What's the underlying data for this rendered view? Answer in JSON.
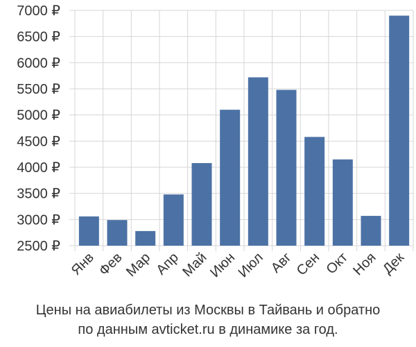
{
  "chart_data": {
    "type": "bar",
    "categories": [
      "Янв",
      "Фев",
      "Мар",
      "Апр",
      "Май",
      "Июн",
      "Июл",
      "Авг",
      "Сен",
      "Окт",
      "Ноя",
      "Дек"
    ],
    "values": [
      3060,
      2990,
      2780,
      3480,
      4080,
      5100,
      5720,
      5480,
      4580,
      4150,
      3070,
      6900
    ],
    "yticks": [
      2500,
      3000,
      3500,
      4000,
      4500,
      5000,
      5500,
      6000,
      6500,
      7000
    ],
    "ytick_suffix": " ₽",
    "ylim": [
      2500,
      7000
    ],
    "grid": true,
    "bar_color": "#4c72a5"
  },
  "caption": {
    "line1": "Цены на авиабилеты из Москвы в Тайвань и обратно",
    "line2": "по данным avticket.ru в динамике за год."
  }
}
